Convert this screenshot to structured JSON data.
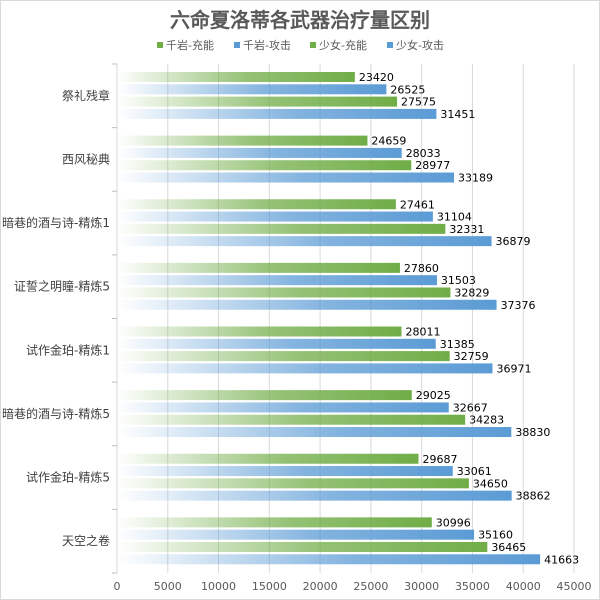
{
  "chart_data": {
    "type": "bar",
    "orientation": "horizontal",
    "title": "六命夏洛蒂各武器治疗量区别",
    "xlabel": "",
    "ylabel": "",
    "xlim": [
      0,
      45000
    ],
    "xticks": [
      0,
      5000,
      10000,
      15000,
      20000,
      25000,
      30000,
      35000,
      40000,
      45000
    ],
    "grid": true,
    "legend_position": "top",
    "categories": [
      "祭礼残章",
      "西风秘典",
      "暗巷的酒与诗-精炼1",
      "证誓之明瞳-精炼5",
      "试作金珀-精炼1",
      "暗巷的酒与诗-精炼5",
      "试作金珀-精炼5",
      "天空之卷"
    ],
    "series": [
      {
        "name": "千岩-充能",
        "color": "#70ad47",
        "values": [
          23420,
          24659,
          27461,
          27860,
          28011,
          29025,
          29687,
          30996
        ]
      },
      {
        "name": "千岩-攻击",
        "color": "#5b9bd5",
        "values": [
          26525,
          28033,
          31104,
          31503,
          31385,
          32667,
          33061,
          35160
        ]
      },
      {
        "name": "少女-充能",
        "color": "#70ad47",
        "values": [
          27575,
          28977,
          32331,
          32829,
          32759,
          34283,
          34650,
          36465
        ]
      },
      {
        "name": "少女-攻击",
        "color": "#5b9bd5",
        "values": [
          31451,
          33189,
          36879,
          37376,
          36971,
          38830,
          38862,
          41663
        ]
      }
    ]
  }
}
